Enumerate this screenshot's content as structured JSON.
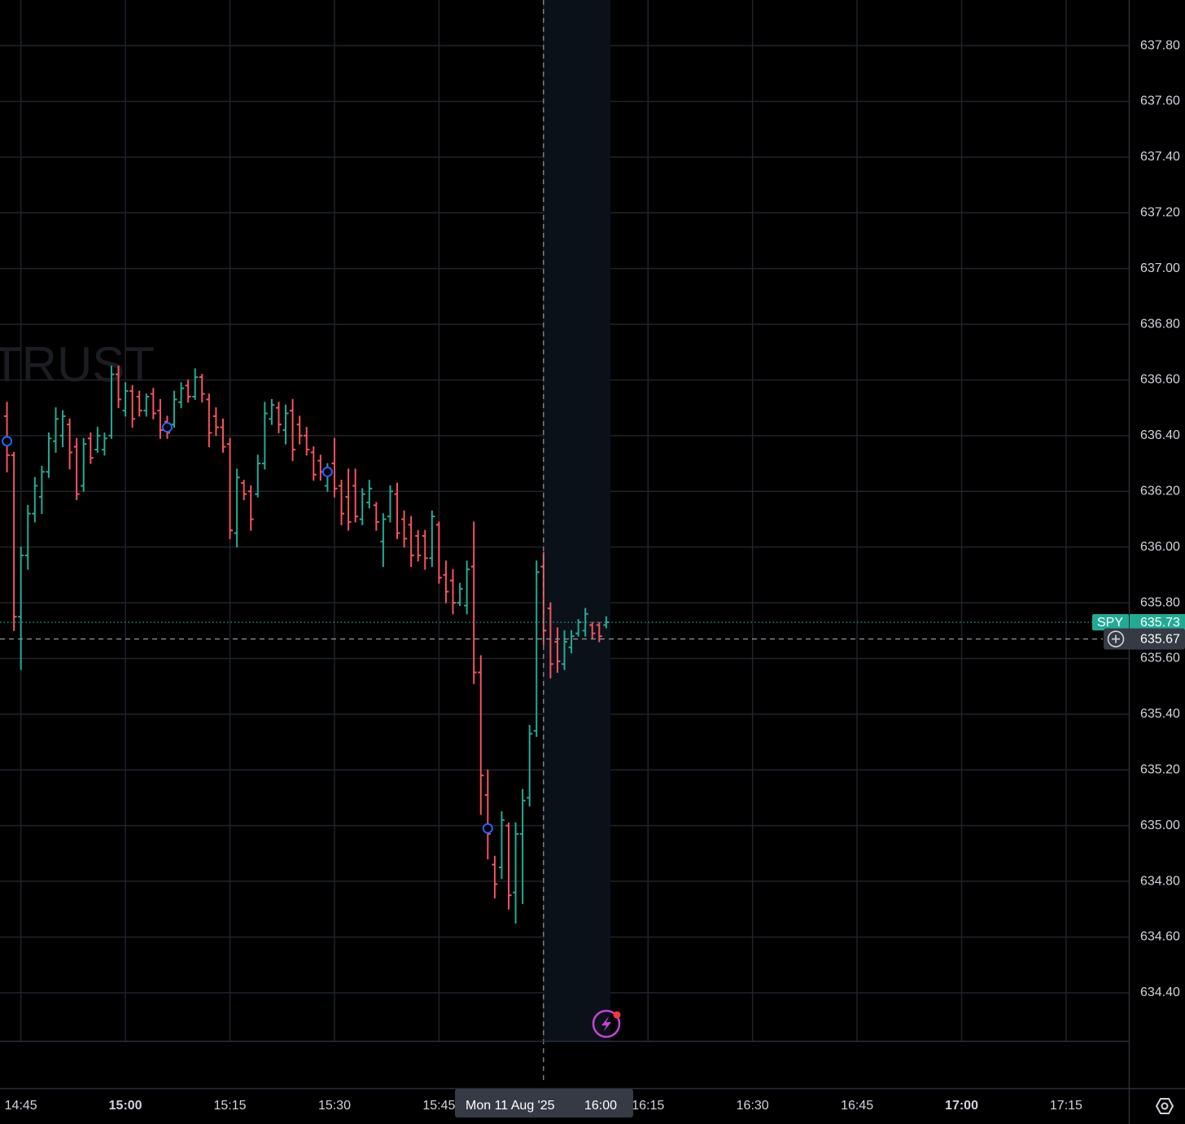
{
  "chart_data": {
    "type": "ohlc",
    "watermark": "TRUST",
    "x": [
      "14:43",
      "14:44",
      "14:45",
      "14:46",
      "14:47",
      "14:48",
      "14:49",
      "14:50",
      "14:51",
      "14:52",
      "14:53",
      "14:54",
      "14:55",
      "14:56",
      "14:57",
      "14:58",
      "14:59",
      "15:00",
      "15:01",
      "15:02",
      "15:03",
      "15:04",
      "15:05",
      "15:06",
      "15:07",
      "15:08",
      "15:09",
      "15:10",
      "15:11",
      "15:12",
      "15:13",
      "15:14",
      "15:15",
      "15:16",
      "15:17",
      "15:18",
      "15:19",
      "15:20",
      "15:21",
      "15:22",
      "15:23",
      "15:24",
      "15:25",
      "15:26",
      "15:27",
      "15:28",
      "15:29",
      "15:30",
      "15:31",
      "15:32",
      "15:33",
      "15:34",
      "15:35",
      "15:36",
      "15:37",
      "15:38",
      "15:39",
      "15:40",
      "15:41",
      "15:42",
      "15:43",
      "15:44",
      "15:45",
      "15:46",
      "15:47",
      "15:48",
      "15:49",
      "15:50",
      "15:51",
      "15:52",
      "15:53",
      "15:54",
      "15:55",
      "15:56",
      "15:57",
      "15:58",
      "15:59",
      "16:00",
      "16:01",
      "16:02",
      "16:03",
      "16:04",
      "16:05",
      "16:06",
      "16:07",
      "16:08",
      "16:09"
    ],
    "open": [
      636.47,
      636.33,
      635.75,
      635.97,
      636.12,
      636.18,
      636.27,
      636.38,
      636.4,
      636.44,
      636.36,
      636.22,
      636.39,
      636.35,
      636.35,
      636.4,
      636.62,
      636.49,
      636.56,
      636.54,
      636.49,
      636.55,
      636.49,
      636.45,
      636.44,
      636.52,
      636.58,
      636.54,
      636.61,
      636.53,
      636.47,
      636.43,
      636.37,
      636.05,
      636.23,
      636.2,
      636.19,
      636.3,
      636.46,
      636.5,
      636.42,
      636.49,
      636.44,
      636.4,
      636.34,
      636.31,
      636.22,
      636.3,
      636.22,
      636.18,
      636.22,
      636.1,
      636.16,
      636.15,
      636.02,
      636.11,
      636.19,
      636.1,
      636.08,
      636.04,
      636.04,
      635.96,
      636.08,
      635.9,
      635.88,
      635.8,
      635.79,
      635.93,
      635.55,
      635.11,
      634.86,
      634.85,
      635.0,
      634.76,
      634.97,
      635.1,
      635.34,
      635.93,
      635.78,
      635.66,
      635.58,
      635.64,
      635.69,
      635.7,
      635.72,
      635.72,
      635.72
    ],
    "high": [
      636.52,
      636.34,
      636.0,
      636.15,
      636.25,
      636.29,
      636.41,
      636.5,
      636.49,
      636.46,
      636.39,
      636.39,
      636.41,
      636.43,
      636.41,
      636.65,
      636.65,
      636.59,
      636.58,
      636.56,
      636.55,
      636.57,
      636.53,
      636.47,
      636.56,
      636.59,
      636.6,
      636.64,
      636.62,
      636.55,
      636.5,
      636.46,
      636.39,
      636.28,
      636.24,
      636.22,
      636.33,
      636.52,
      636.53,
      636.52,
      636.51,
      636.53,
      636.47,
      636.43,
      636.36,
      636.33,
      636.3,
      636.39,
      636.24,
      636.28,
      636.28,
      636.21,
      636.24,
      636.16,
      636.12,
      636.22,
      636.23,
      636.13,
      636.11,
      636.06,
      636.06,
      636.13,
      636.09,
      635.95,
      635.92,
      635.87,
      635.95,
      636.09,
      635.61,
      635.2,
      634.89,
      635.05,
      635.01,
      635.01,
      635.13,
      635.36,
      635.95,
      635.98,
      635.8,
      635.71,
      635.7,
      635.7,
      635.74,
      635.78,
      635.73,
      635.73,
      635.75
    ],
    "low": [
      636.27,
      635.7,
      635.56,
      635.92,
      636.09,
      636.12,
      636.25,
      636.34,
      636.36,
      636.28,
      636.17,
      636.2,
      636.3,
      636.34,
      636.33,
      636.39,
      636.5,
      636.47,
      636.43,
      636.47,
      636.47,
      636.46,
      636.39,
      636.39,
      636.43,
      636.5,
      636.52,
      636.53,
      636.52,
      636.36,
      636.4,
      636.34,
      636.03,
      636.0,
      636.17,
      636.06,
      636.18,
      636.28,
      636.44,
      636.41,
      636.37,
      636.31,
      636.37,
      636.33,
      636.24,
      636.24,
      636.2,
      636.18,
      636.08,
      636.06,
      636.09,
      636.08,
      636.14,
      636.06,
      635.93,
      636.09,
      636.03,
      636.0,
      635.93,
      635.95,
      635.92,
      635.93,
      635.87,
      635.8,
      635.76,
      635.79,
      635.76,
      635.51,
      635.04,
      634.88,
      634.74,
      634.81,
      634.7,
      634.65,
      634.72,
      635.07,
      635.32,
      635.65,
      635.53,
      635.55,
      635.56,
      635.62,
      635.68,
      635.68,
      635.67,
      635.66,
      635.71
    ],
    "close": [
      636.33,
      635.75,
      635.97,
      636.12,
      636.22,
      636.27,
      636.39,
      636.46,
      636.47,
      636.34,
      636.19,
      636.37,
      636.32,
      636.4,
      636.39,
      636.62,
      636.53,
      636.56,
      636.46,
      636.49,
      636.54,
      636.48,
      636.42,
      636.41,
      636.53,
      636.57,
      636.54,
      636.61,
      636.55,
      636.41,
      636.43,
      636.36,
      636.06,
      636.25,
      636.19,
      636.1,
      636.3,
      636.48,
      636.51,
      636.44,
      636.48,
      636.35,
      636.4,
      636.35,
      636.26,
      636.27,
      636.28,
      636.21,
      636.12,
      636.09,
      636.11,
      636.19,
      636.21,
      636.09,
      636.1,
      636.2,
      636.05,
      636.03,
      635.97,
      635.97,
      635.96,
      636.11,
      635.89,
      635.84,
      635.8,
      635.85,
      635.92,
      635.55,
      635.18,
      634.97,
      634.79,
      635.02,
      634.75,
      634.97,
      635.09,
      635.33,
      635.91,
      635.7,
      635.58,
      635.59,
      635.66,
      635.68,
      635.73,
      635.76,
      635.69,
      635.68,
      635.73
    ],
    "up_color": "#22ab94",
    "down_color": "#f7525f",
    "markers": {
      "x": [
        "14:43",
        "15:06",
        "15:29",
        "15:52"
      ],
      "values": [
        636.38,
        636.43,
        636.27,
        634.99
      ],
      "color": "#2962ff"
    },
    "xlim": [
      "14:42",
      "17:24"
    ],
    "xticks": [
      "14:45",
      "15:00",
      "15:15",
      "15:30",
      "15:45",
      "16:00",
      "16:15",
      "16:30",
      "16:45",
      "17:00",
      "17:15"
    ],
    "ylim": [
      634.227,
      637.964
    ],
    "yticks": [
      {
        "value": 634.4,
        "label": "634.40"
      },
      {
        "value": 634.6,
        "label": "634.60"
      },
      {
        "value": 634.8,
        "label": "634.80"
      },
      {
        "value": 635.0,
        "label": "635.00"
      },
      {
        "value": 635.2,
        "label": "635.20"
      },
      {
        "value": 635.4,
        "label": "635.40"
      },
      {
        "value": 635.6,
        "label": "635.60"
      },
      {
        "value": 635.8,
        "label": "635.80"
      },
      {
        "value": 636.0,
        "label": "636.00"
      },
      {
        "value": 636.2,
        "label": "636.20"
      },
      {
        "value": 636.4,
        "label": "636.40"
      },
      {
        "value": 636.6,
        "label": "636.60"
      },
      {
        "value": 636.8,
        "label": "636.80"
      },
      {
        "value": 637.0,
        "label": "637.00"
      },
      {
        "value": 637.2,
        "label": "637.20"
      },
      {
        "value": 637.4,
        "label": "637.40"
      },
      {
        "value": 637.6,
        "label": "637.60"
      },
      {
        "value": 637.8,
        "label": "637.80"
      }
    ],
    "grid": true,
    "last_price": {
      "symbol": "SPY",
      "value": 635.73,
      "color": "#22ab94"
    },
    "crosshair": {
      "x": "16:00",
      "y": 635.67,
      "date_label": "Mon 11 Aug '25"
    }
  }
}
